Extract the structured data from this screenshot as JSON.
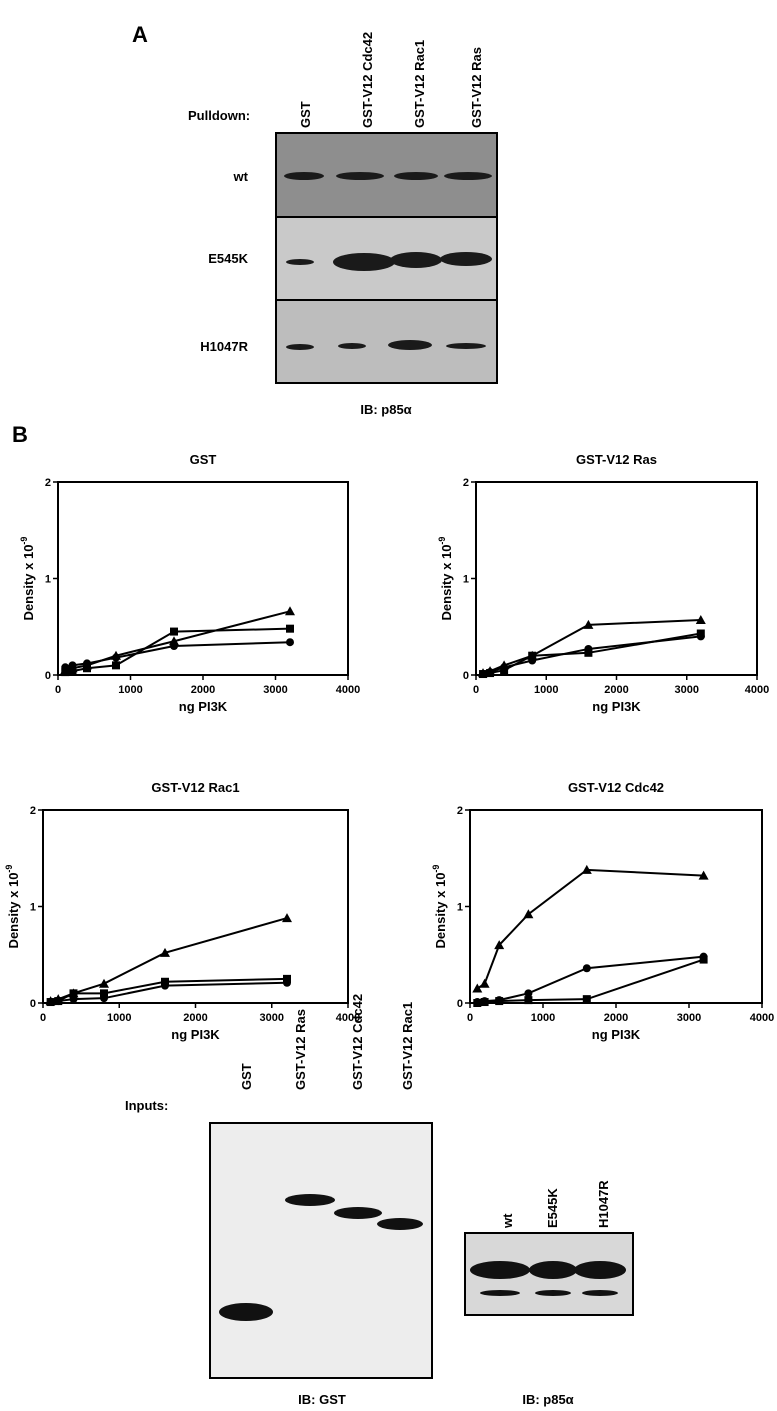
{
  "panel_a": {
    "letter": "A",
    "pulldown_label": "Pulldown:",
    "lanes": [
      "GST",
      "GST-V12 Cdc42",
      "GST-V12 Rac1",
      "GST-V12 Ras"
    ],
    "rows": [
      "wt",
      "E545K",
      "H1047R"
    ],
    "blot_label": "IB: p85α"
  },
  "panel_b": {
    "letter": "B"
  },
  "inputs": {
    "label": "Inputs:",
    "lanes": [
      "GST",
      "GST-V12 Ras",
      "GST-V12 Cdc42",
      "GST-V12 Rac1"
    ],
    "blot_label": "IB: GST",
    "p85_lanes": [
      "wt",
      "E545K",
      "H1047R"
    ],
    "p85_label": "IB: p85α"
  },
  "chart_data": [
    {
      "type": "scatter",
      "title": "GST",
      "ylabel": "Density x 10",
      "ylabel_exponent": "-9",
      "xlabel": "ng PI3K",
      "xlim": [
        0,
        4000
      ],
      "xticks": [
        0,
        1000,
        2000,
        3000,
        4000
      ],
      "ylim": [
        0,
        2
      ],
      "yticks": [
        0,
        1,
        2
      ],
      "x": [
        100,
        200,
        400,
        800,
        1600,
        3200
      ],
      "series": [
        {
          "marker": "triangle",
          "color": "#000000",
          "values": [
            0.05,
            0.07,
            0.1,
            0.2,
            0.35,
            0.66
          ]
        },
        {
          "marker": "square",
          "color": "#000000",
          "values": [
            0.03,
            0.04,
            0.07,
            0.1,
            0.45,
            0.48
          ]
        },
        {
          "marker": "circle",
          "color": "#000000",
          "values": [
            0.08,
            0.1,
            0.12,
            0.18,
            0.3,
            0.34
          ]
        }
      ]
    },
    {
      "type": "scatter",
      "title": "GST-V12 Ras",
      "ylabel": "Density x 10",
      "ylabel_exponent": "-9",
      "xlabel": "ng PI3K",
      "xlim": [
        0,
        4000
      ],
      "xticks": [
        0,
        1000,
        2000,
        3000,
        4000
      ],
      "ylim": [
        0,
        2
      ],
      "yticks": [
        0,
        1,
        2
      ],
      "x": [
        100,
        200,
        400,
        800,
        1600,
        3200
      ],
      "series": [
        {
          "marker": "triangle",
          "color": "#000000",
          "values": [
            0.02,
            0.04,
            0.1,
            0.2,
            0.52,
            0.57
          ]
        },
        {
          "marker": "square",
          "color": "#000000",
          "values": [
            0.01,
            0.02,
            0.05,
            0.2,
            0.23,
            0.43
          ]
        },
        {
          "marker": "circle",
          "color": "#000000",
          "values": [
            0.01,
            0.03,
            0.08,
            0.15,
            0.27,
            0.4
          ]
        }
      ]
    },
    {
      "type": "scatter",
      "title": "GST-V12 Rac1",
      "ylabel": "Density x 10",
      "ylabel_exponent": "-9",
      "xlabel": "ng PI3K",
      "xlim": [
        0,
        4000
      ],
      "xticks": [
        0,
        1000,
        2000,
        3000,
        4000
      ],
      "ylim": [
        0,
        2
      ],
      "yticks": [
        0,
        1,
        2
      ],
      "x": [
        100,
        200,
        400,
        800,
        1600,
        3200
      ],
      "series": [
        {
          "marker": "triangle",
          "color": "#000000",
          "values": [
            0.02,
            0.04,
            0.1,
            0.2,
            0.52,
            0.88
          ]
        },
        {
          "marker": "square",
          "color": "#000000",
          "values": [
            0.01,
            0.02,
            0.1,
            0.1,
            0.22,
            0.25
          ]
        },
        {
          "marker": "circle",
          "color": "#000000",
          "values": [
            0.01,
            0.02,
            0.04,
            0.05,
            0.18,
            0.21
          ]
        }
      ]
    },
    {
      "type": "scatter",
      "title": "GST-V12 Cdc42",
      "ylabel": "Density x 10",
      "ylabel_exponent": "-9",
      "xlabel": "ng PI3K",
      "xlim": [
        0,
        4000
      ],
      "xticks": [
        0,
        1000,
        2000,
        3000,
        4000
      ],
      "ylim": [
        0,
        2
      ],
      "yticks": [
        0,
        1,
        2
      ],
      "x": [
        100,
        200,
        400,
        800,
        1600,
        3200
      ],
      "series": [
        {
          "marker": "triangle",
          "color": "#000000",
          "values": [
            0.15,
            0.2,
            0.6,
            0.92,
            1.38,
            1.32
          ]
        },
        {
          "marker": "square",
          "color": "#000000",
          "values": [
            0,
            0.01,
            0.02,
            0.03,
            0.04,
            0.45
          ]
        },
        {
          "marker": "circle",
          "color": "#000000",
          "values": [
            0.01,
            0.02,
            0.03,
            0.1,
            0.36,
            0.48
          ]
        }
      ]
    }
  ]
}
